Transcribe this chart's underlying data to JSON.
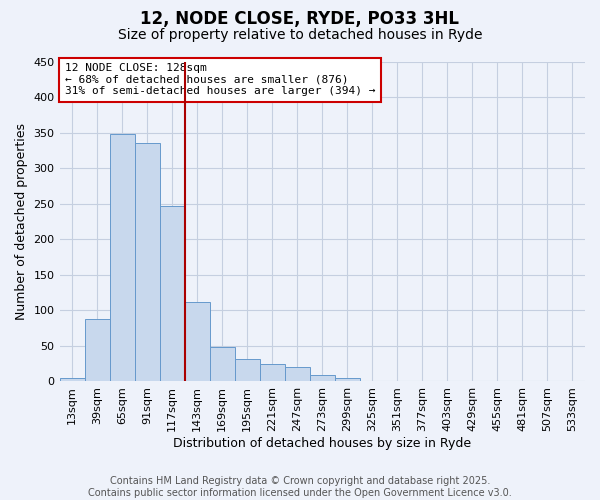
{
  "title": "12, NODE CLOSE, RYDE, PO33 3HL",
  "subtitle": "Size of property relative to detached houses in Ryde",
  "xlabel": "Distribution of detached houses by size in Ryde",
  "ylabel": "Number of detached properties",
  "bar_color": "#c8d8ed",
  "bar_edge_color": "#6699cc",
  "background_color": "#eef2fa",
  "grid_color": "#c5cfe0",
  "bin_labels": [
    "13sqm",
    "39sqm",
    "65sqm",
    "91sqm",
    "117sqm",
    "143sqm",
    "169sqm",
    "195sqm",
    "221sqm",
    "247sqm",
    "273sqm",
    "299sqm",
    "325sqm",
    "351sqm",
    "377sqm",
    "403sqm",
    "429sqm",
    "455sqm",
    "481sqm",
    "507sqm",
    "533sqm"
  ],
  "bar_heights": [
    5,
    88,
    348,
    335,
    247,
    112,
    49,
    31,
    25,
    20,
    9,
    5,
    1,
    0,
    1,
    0,
    1,
    1,
    0,
    1,
    0
  ],
  "ylim": [
    0,
    450
  ],
  "yticks": [
    0,
    50,
    100,
    150,
    200,
    250,
    300,
    350,
    400,
    450
  ],
  "vline_position": 4.5,
  "vline_color": "#aa0000",
  "annotation_text": "12 NODE CLOSE: 128sqm\n← 68% of detached houses are smaller (876)\n31% of semi-detached houses are larger (394) →",
  "annotation_box_color": "#ffffff",
  "annotation_box_edge": "#cc0000",
  "footer_line1": "Contains HM Land Registry data © Crown copyright and database right 2025.",
  "footer_line2": "Contains public sector information licensed under the Open Government Licence v3.0.",
  "title_fontsize": 12,
  "subtitle_fontsize": 10,
  "ylabel_fontsize": 9,
  "xlabel_fontsize": 9,
  "tick_fontsize": 8,
  "ann_fontsize": 8,
  "footer_fontsize": 7
}
